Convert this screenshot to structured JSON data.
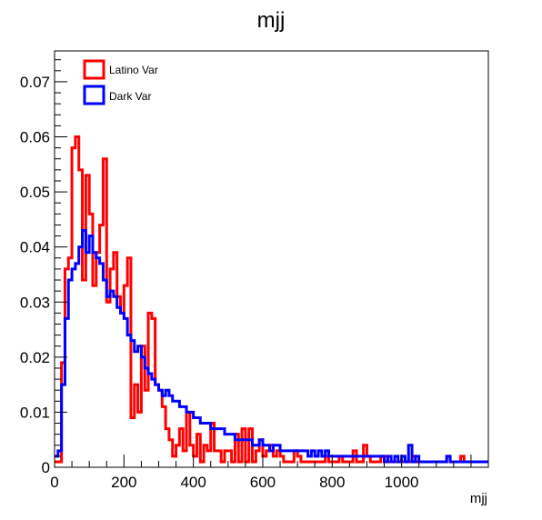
{
  "chart_data": {
    "type": "histogram",
    "title": "mjj",
    "xlabel": "mjj",
    "ylabel": "",
    "xlim": [
      0,
      1250
    ],
    "ylim": [
      0,
      0.0756
    ],
    "bin_width": 10,
    "x_ticks": [
      0,
      200,
      400,
      600,
      800,
      1000
    ],
    "y_ticks": [
      0,
      0.01,
      0.02,
      0.03,
      0.04,
      0.05,
      0.06,
      0.07
    ],
    "y_tick_labels": [
      "0",
      "0.01",
      "0.02",
      "0.03",
      "0.04",
      "0.05",
      "0.06",
      "0.07"
    ],
    "x_tick_labels": [
      "0",
      "200",
      "400",
      "600",
      "800",
      "1000"
    ],
    "grid": false,
    "legend": {
      "position": "top-left"
    },
    "series": [
      {
        "name": "Latino Var",
        "color": "#ff0000",
        "values": [
          0.001,
          0.001,
          0.019,
          0.036,
          0.038,
          0.058,
          0.06,
          0.054,
          0.034,
          0.053,
          0.046,
          0.033,
          0.039,
          0.044,
          0.056,
          0.03,
          0.036,
          0.039,
          0.031,
          0.028,
          0.033,
          0.038,
          0.009,
          0.015,
          0.01,
          0.022,
          0.014,
          0.028,
          0.027,
          0.015,
          0.014,
          0.011,
          0.007,
          0.005,
          0.002,
          0.004,
          0.007,
          0.003,
          0.01,
          0.004,
          0.002,
          0.006,
          0.001,
          0.004,
          0.003,
          0.008,
          0.003,
          0.003,
          0.001,
          0.003,
          0.003,
          0.001,
          0.006,
          0.001,
          0.007,
          0.001,
          0.007,
          0.001,
          0.003,
          0.005,
          0.002,
          0.003,
          0.004,
          0.002,
          0.003,
          0.002,
          0.001,
          0.001,
          0.001,
          0.003,
          0.002,
          0.001,
          0.001,
          0.001,
          0.001,
          0.001,
          0.001,
          0.001,
          0.002,
          0.001,
          0.001,
          0.001,
          0.002,
          0.001,
          0.001,
          0.001,
          0.003,
          0.001,
          0.001,
          0.004,
          0.002,
          0.001,
          0.001,
          0.001,
          0.002,
          0.002,
          0.001,
          0.001,
          0.001,
          0.001,
          0.001,
          0.001,
          0.001,
          0.002,
          0.001,
          0.001,
          0.001,
          0.001,
          0.001,
          0.001,
          0.001,
          0.001,
          0.001,
          0.002,
          0.001,
          0.001,
          0.001,
          0.002,
          0.001,
          0.001,
          0.001,
          0.001,
          0.001,
          0.001,
          0.001
        ]
      },
      {
        "name": "Dark Var",
        "color": "#0000ff",
        "values": [
          0.002,
          0.003,
          0.015,
          0.027,
          0.034,
          0.036,
          0.037,
          0.04,
          0.043,
          0.039,
          0.042,
          0.039,
          0.038,
          0.037,
          0.034,
          0.031,
          0.032,
          0.031,
          0.029,
          0.028,
          0.027,
          0.024,
          0.023,
          0.021,
          0.022,
          0.02,
          0.018,
          0.017,
          0.016,
          0.015,
          0.014,
          0.013,
          0.014,
          0.013,
          0.012,
          0.012,
          0.011,
          0.011,
          0.01,
          0.01,
          0.009,
          0.009,
          0.008,
          0.008,
          0.008,
          0.007,
          0.007,
          0.007,
          0.007,
          0.006,
          0.006,
          0.006,
          0.005,
          0.005,
          0.005,
          0.005,
          0.005,
          0.004,
          0.004,
          0.005,
          0.004,
          0.004,
          0.003,
          0.004,
          0.004,
          0.003,
          0.003,
          0.003,
          0.003,
          0.003,
          0.003,
          0.003,
          0.003,
          0.002,
          0.003,
          0.002,
          0.003,
          0.002,
          0.003,
          0.002,
          0.002,
          0.002,
          0.002,
          0.002,
          0.002,
          0.002,
          0.002,
          0.002,
          0.002,
          0.002,
          0.002,
          0.002,
          0.002,
          0.002,
          0.002,
          0.001,
          0.002,
          0.001,
          0.002,
          0.001,
          0.002,
          0.001,
          0.004,
          0.001,
          0.002,
          0.001,
          0.001,
          0.001,
          0.001,
          0.001,
          0.001,
          0.001,
          0.001,
          0.002,
          0.001,
          0.001,
          0.001,
          0.001,
          0.001,
          0.001,
          0.001,
          0.001,
          0.001,
          0.001,
          0.001
        ]
      }
    ]
  }
}
